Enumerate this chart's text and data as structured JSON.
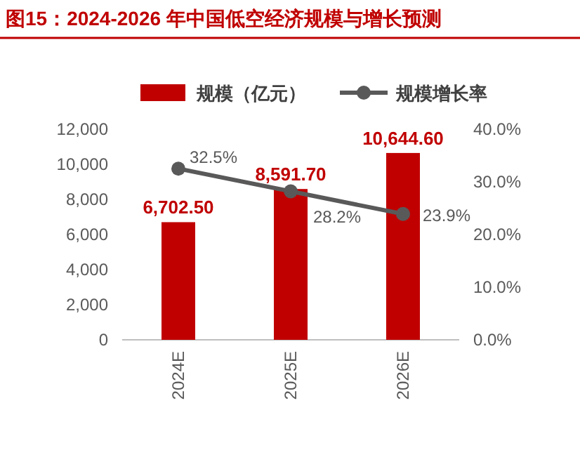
{
  "chart_data": {
    "type": "bar",
    "title": "图15：2024-2026 年中国低空经济规模与增长预测",
    "categories": [
      "2024E",
      "2025E",
      "2026E"
    ],
    "series": [
      {
        "name": "规模（亿元）",
        "color": "#c00000",
        "values": [
          6702.5,
          8591.7,
          10644.6
        ],
        "value_labels": [
          "6,702.50",
          "8,591.70",
          "10,644.60"
        ]
      },
      {
        "name": "规模增长率",
        "type": "line",
        "axis": "y2",
        "color": "#595959",
        "marker": "circle",
        "values": [
          32.5,
          28.2,
          23.9
        ],
        "value_labels": [
          "32.5%",
          "28.2%",
          "23.9%"
        ]
      }
    ],
    "ylim": [
      0,
      12000
    ],
    "yticks": [
      0,
      {
        "value": 2000,
        "label": "2,000"
      },
      {
        "value": 4000,
        "label": "4,000"
      },
      {
        "value": 6000,
        "label": "6,000"
      },
      {
        "value": 8000,
        "label": "8,000"
      },
      {
        "value": 10000,
        "label": "10,000"
      },
      {
        "value": 12000,
        "label": "12,000"
      }
    ],
    "y2lim": [
      0,
      40
    ],
    "y2ticks": [
      {
        "value": 0,
        "label": "0.0%"
      },
      {
        "value": 10,
        "label": "10.0%"
      },
      {
        "value": 20,
        "label": "20.0%"
      },
      {
        "value": 30,
        "label": "30.0%"
      },
      {
        "value": 40,
        "label": "40.0%"
      }
    ],
    "legend": "top",
    "grid": false
  }
}
